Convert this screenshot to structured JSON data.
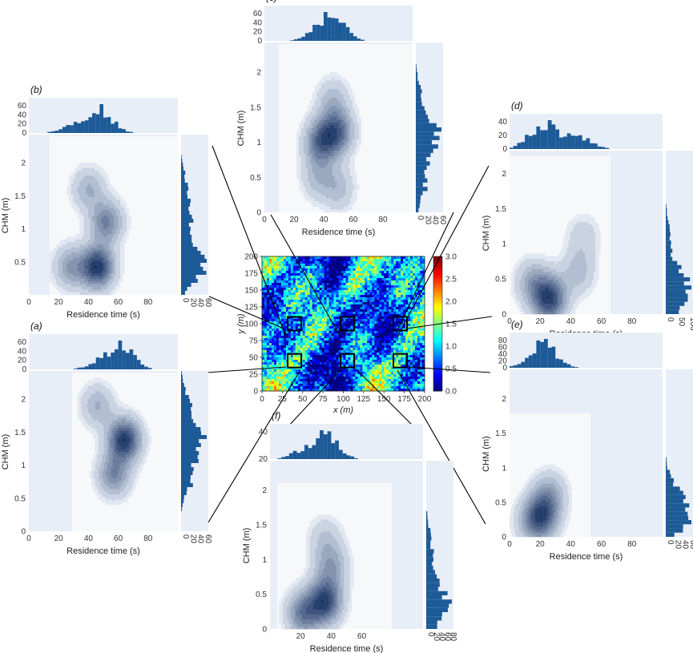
{
  "chart_data": [
    {
      "id": "map",
      "type": "heatmap",
      "title": "",
      "xlabel": "x (m)",
      "ylabel": "y (m)",
      "xlim": [
        0,
        200
      ],
      "ylim": [
        0,
        200
      ],
      "xticks": [
        "0",
        "25",
        "50",
        "75",
        "100",
        "125",
        "150",
        "175",
        "200"
      ],
      "yticks": [
        "0",
        "25",
        "50",
        "75",
        "100",
        "125",
        "150",
        "175",
        "200"
      ],
      "colorbar": {
        "range": [
          0.0,
          3.0
        ],
        "ticks": [
          "0.0",
          "0.5",
          "1.0",
          "1.5",
          "2.0",
          "2.5",
          "3.0"
        ]
      },
      "boxes": [
        {
          "panel": "b",
          "x": 40,
          "y": 100
        },
        {
          "panel": "c",
          "x": 105,
          "y": 100
        },
        {
          "panel": "d",
          "x": 170,
          "y": 100
        },
        {
          "panel": "a",
          "x": 40,
          "y": 45
        },
        {
          "panel": "f",
          "x": 105,
          "y": 45
        },
        {
          "panel": "e",
          "x": 170,
          "y": 45
        }
      ]
    },
    {
      "id": "a",
      "panel_label": "(a)",
      "type": "contour",
      "xlabel": "Residence time (s)",
      "ylabel": "CHM (m)",
      "xlim": [
        0,
        100
      ],
      "ylim": [
        0,
        2.4
      ],
      "xticks": [
        "0",
        "20",
        "40",
        "60",
        "80"
      ],
      "yticks": [
        "0",
        "0.5",
        "1",
        "1.5",
        "2"
      ],
      "hist_top_ticks": [
        "0",
        "20",
        "40",
        "60"
      ],
      "hist_right_ticks": [
        "0",
        "20",
        "40",
        "60"
      ],
      "peaks": [
        {
          "x": 64,
          "y": 1.38,
          "w": 1.0
        },
        {
          "x": 57,
          "y": 0.85,
          "w": 0.55
        },
        {
          "x": 46,
          "y": 1.9,
          "w": 0.35
        }
      ],
      "inner_xlim": [
        28,
        100
      ],
      "inner_ylim": [
        0,
        2.25
      ]
    },
    {
      "id": "b",
      "panel_label": "(b)",
      "type": "contour",
      "xlabel": "Residence time (s)",
      "ylabel": "CHM (m)",
      "xlim": [
        0,
        100
      ],
      "ylim": [
        0,
        2.4
      ],
      "xticks": [
        "0",
        "20",
        "40",
        "60",
        "80"
      ],
      "yticks": [
        "0.5",
        "1",
        "1.5",
        "2"
      ],
      "hist_top_ticks": [
        "0",
        "20",
        "40",
        "60"
      ],
      "hist_right_ticks": [
        "0",
        "20",
        "40",
        "60"
      ],
      "peaks": [
        {
          "x": 46,
          "y": 0.42,
          "w": 1.0
        },
        {
          "x": 52,
          "y": 1.1,
          "w": 0.6
        },
        {
          "x": 28,
          "y": 0.42,
          "w": 0.45
        },
        {
          "x": 40,
          "y": 1.6,
          "w": 0.35
        }
      ],
      "inner_xlim": [
        12,
        100
      ],
      "inner_ylim": [
        0.2,
        2.25
      ]
    },
    {
      "id": "c",
      "panel_label": "(c)",
      "type": "contour",
      "xlabel": "Residence time (s)",
      "ylabel": "CHM (m)",
      "xlim": [
        0,
        100
      ],
      "ylim": [
        0,
        2.4
      ],
      "xticks": [
        "0",
        "20",
        "40",
        "60",
        "80"
      ],
      "yticks": [
        "0",
        "0.5",
        "1",
        "1.5",
        "2"
      ],
      "hist_top_ticks": [
        "0",
        "20",
        "40",
        "60"
      ],
      "hist_right_ticks": [
        "0",
        "20",
        "40",
        "60"
      ],
      "peaks": [
        {
          "x": 38,
          "y": 1.0,
          "w": 0.95
        },
        {
          "x": 49,
          "y": 1.15,
          "w": 1.0
        },
        {
          "x": 46,
          "y": 1.6,
          "w": 0.4
        },
        {
          "x": 36,
          "y": 0.5,
          "w": 0.4
        },
        {
          "x": 50,
          "y": 0.35,
          "w": 0.4
        }
      ],
      "inner_xlim": [
        8,
        100
      ],
      "inner_ylim": [
        0,
        2.3
      ]
    },
    {
      "id": "d",
      "panel_label": "(d)",
      "type": "contour",
      "xlabel": "Residence time (s)",
      "ylabel": "CHM (m)",
      "xlim": [
        0,
        100
      ],
      "ylim": [
        0,
        2.3
      ],
      "xticks": [
        "0",
        "20",
        "40",
        "60",
        "80"
      ],
      "yticks": [
        "0",
        "0.5",
        "1",
        "1.5",
        "2"
      ],
      "hist_top_ticks": [
        "0",
        "20",
        "40"
      ],
      "hist_right_ticks": [
        "0",
        "50",
        "100"
      ],
      "peaks": [
        {
          "x": 26,
          "y": 0.22,
          "w": 1.0
        },
        {
          "x": 15,
          "y": 0.45,
          "w": 0.4
        },
        {
          "x": 45,
          "y": 0.6,
          "w": 0.3
        },
        {
          "x": 48,
          "y": 1.1,
          "w": 0.2
        }
      ],
      "inner_xlim": [
        0,
        63
      ],
      "inner_ylim": [
        0,
        2.2
      ]
    },
    {
      "id": "e",
      "panel_label": "(e)",
      "type": "contour",
      "xlabel": "Residence time (s)",
      "ylabel": "CHM (m)",
      "xlim": [
        0,
        100
      ],
      "ylim": [
        0,
        2.4
      ],
      "xticks": [
        "0",
        "20",
        "40",
        "60",
        "80"
      ],
      "yticks": [
        "0",
        "0.5",
        "1",
        "1.5",
        "2"
      ],
      "hist_top_ticks": [
        "0",
        "20",
        "40",
        "60",
        "80"
      ],
      "hist_right_ticks": [
        "0",
        "20",
        "40",
        "60"
      ],
      "peaks": [
        {
          "x": 21,
          "y": 0.3,
          "w": 1.0
        },
        {
          "x": 26,
          "y": 0.62,
          "w": 0.5
        },
        {
          "x": 14,
          "y": 0.2,
          "w": 0.35
        }
      ],
      "inner_xlim": [
        0,
        50
      ],
      "inner_ylim": [
        0,
        1.6
      ]
    },
    {
      "id": "f",
      "panel_label": "(f)",
      "type": "contour",
      "xlabel": "Residence time (s)",
      "ylabel": "CHM (m)",
      "xlim": [
        0,
        100
      ],
      "ylim": [
        0,
        2.4
      ],
      "xticks": [
        "20",
        "40",
        "60"
      ],
      "yticks": [
        "0",
        "0.5",
        "1",
        "1.5",
        "2"
      ],
      "hist_top_ticks": [
        "20",
        "40"
      ],
      "hist_right_ticks": [
        "0",
        "20",
        "40",
        "60",
        "80"
      ],
      "peaks": [
        {
          "x": 36,
          "y": 0.4,
          "w": 1.0
        },
        {
          "x": 22,
          "y": 0.22,
          "w": 0.7
        },
        {
          "x": 40,
          "y": 0.9,
          "w": 0.45
        },
        {
          "x": 36,
          "y": 1.3,
          "w": 0.25
        }
      ],
      "inner_xlim": [
        5,
        72
      ],
      "inner_ylim": [
        0,
        2.0
      ]
    }
  ],
  "colors": {
    "panel_bg": "#e8eef7",
    "plot_bg": "#f7f8fa",
    "hist": "#1d5a98",
    "line": "#000000"
  }
}
